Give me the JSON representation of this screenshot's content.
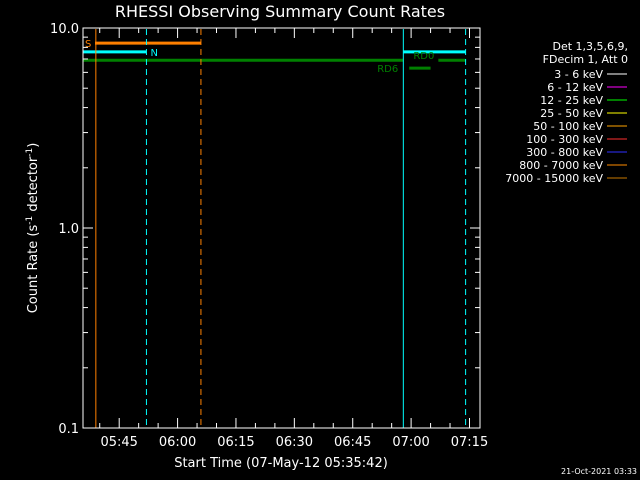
{
  "chart_data": {
    "type": "line",
    "title": "RHESSI Observing Summary Count Rates",
    "xlabel": "Start Time (07-May-12 05:35:42)",
    "ylabel_main": "Count Rate (s",
    "ylabel_sup1": "-1",
    "ylabel_mid": " detector",
    "ylabel_sup2": "-1",
    "ylabel_end": ")",
    "y_scale": "log",
    "ylim": [
      0.1,
      10.0
    ],
    "xlim": [
      "05:35:42",
      "07:17:42"
    ],
    "x_ticks": [
      "05:45",
      "06:00",
      "06:15",
      "06:30",
      "06:45",
      "07:00",
      "07:15"
    ],
    "y_ticks": [
      "0.1",
      "1.0",
      "10.0"
    ],
    "legend_header": [
      "Det 1,3,5,6,9,",
      "FDecim 1, Att 0"
    ],
    "legend_position": "right",
    "series": [
      {
        "name": "3 - 6 keV",
        "color": "#ffffff"
      },
      {
        "name": "6 - 12 keV",
        "color": "#ff00ff"
      },
      {
        "name": "12 - 25 keV",
        "color": "#00ff00"
      },
      {
        "name": "25 - 50 keV",
        "color": "#ffff00"
      },
      {
        "name": "50 - 100 keV",
        "color": "#ffa500"
      },
      {
        "name": "100 - 300 keV",
        "color": "#ff3030"
      },
      {
        "name": "300 - 800 keV",
        "color": "#3030ff"
      },
      {
        "name": "800 - 7000 keV",
        "color": "#ff8c00"
      },
      {
        "name": "7000 - 15000 keV",
        "color": "#c87800"
      }
    ],
    "flag_bars": [
      {
        "label": "S",
        "color": "#ff8000",
        "start": "05:35:42",
        "end": "06:06",
        "y": 8.4,
        "width": 3
      },
      {
        "label": "N",
        "color": "#00ffff",
        "start": "05:35:42",
        "end": "05:52",
        "y": 7.6,
        "width": 3
      },
      {
        "label": "",
        "color": "#00ffff",
        "start": "06:58",
        "end": "07:14",
        "y": 7.6,
        "width": 3
      },
      {
        "label": "",
        "color": "#008000",
        "start": "05:35:42",
        "end": "06:58",
        "y": 6.9,
        "width": 3
      },
      {
        "label": "",
        "color": "#008000",
        "start": "07:07",
        "end": "07:14",
        "y": 6.9,
        "width": 3
      },
      {
        "label": "RD0",
        "color": "#008000",
        "start": "06:58",
        "end": "07:00",
        "y": 6.9,
        "width": 3
      },
      {
        "label": "RD6",
        "color": "#008000",
        "start": "06:59",
        "end": "07:05",
        "y": 6.3,
        "width": 3
      }
    ],
    "vlines": [
      {
        "time": "05:39",
        "color": "#ff8000",
        "style": "solid"
      },
      {
        "time": "05:52",
        "color": "#00ffff",
        "style": "dashed"
      },
      {
        "time": "06:06",
        "color": "#ff8000",
        "style": "dashed"
      },
      {
        "time": "06:58",
        "color": "#00ffff",
        "style": "solid"
      },
      {
        "time": "07:14",
        "color": "#00ffff",
        "style": "dashed"
      }
    ]
  },
  "timestamp": "21-Oct-2021 03:33"
}
